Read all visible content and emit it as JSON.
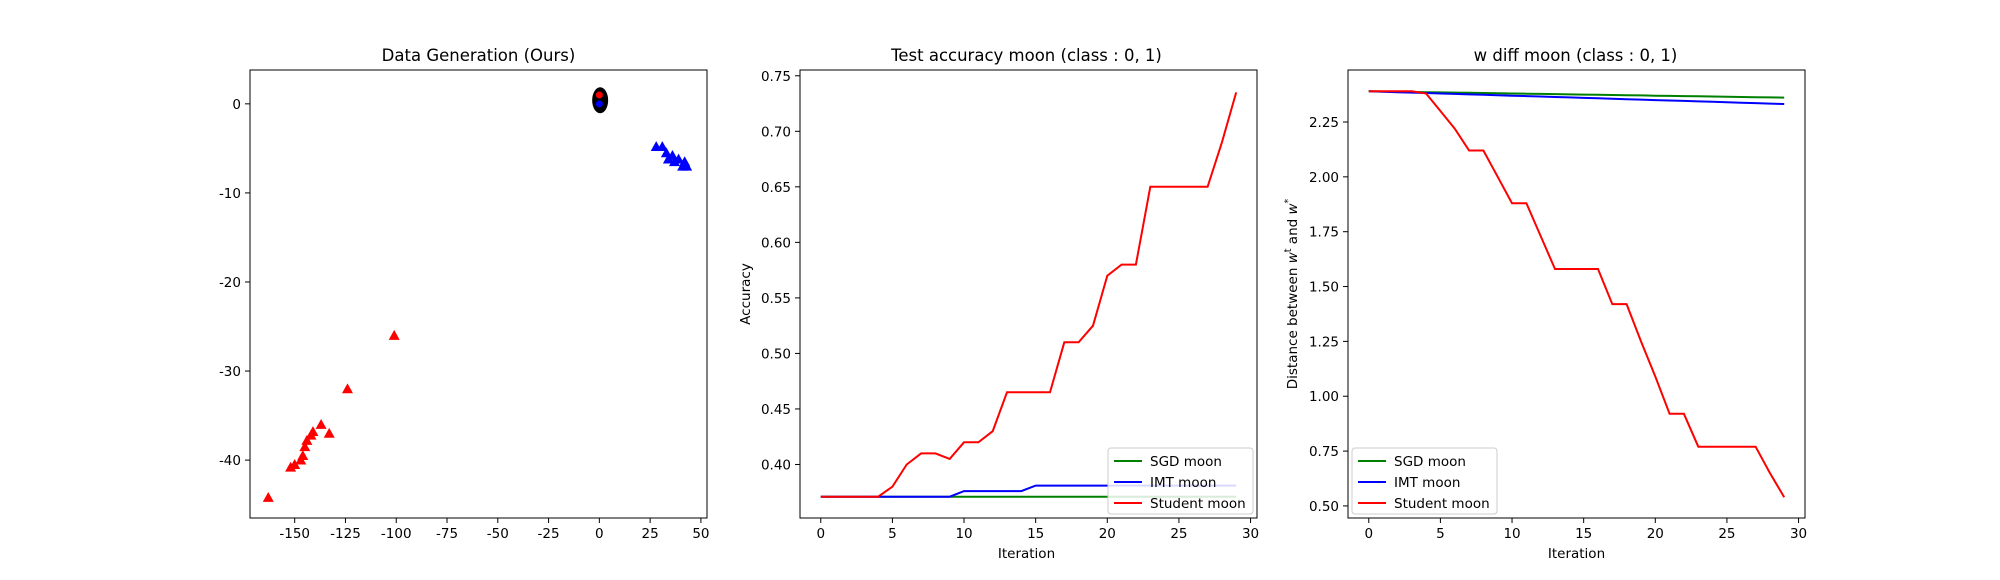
{
  "chart_data": [
    {
      "type": "scatter",
      "title": "Data Generation (Ours)",
      "xlabel": "",
      "ylabel": "",
      "xlim": [
        -172,
        53
      ],
      "ylim": [
        -46.5,
        3.8
      ],
      "xticks": [
        -150,
        -125,
        -100,
        -75,
        -50,
        -25,
        0,
        25,
        50
      ],
      "yticks": [
        0,
        -10,
        -20,
        -30,
        -40
      ],
      "grid": false,
      "colors": {
        "cluster": "#000000",
        "red": "#ff0000",
        "blue": "#0000ff"
      },
      "cluster": {
        "x": 0.4,
        "y": 0.4
      },
      "series": [
        {
          "marker": "triangle",
          "color": "#ff0000",
          "points": [
            [
              -163,
              -44.2
            ],
            [
              -152,
              -40.8
            ],
            [
              -150,
              -40.5
            ],
            [
              -147,
              -40
            ],
            [
              -146,
              -39.5
            ],
            [
              -145,
              -38.5
            ],
            [
              -144,
              -37.8
            ],
            [
              -142,
              -37.2
            ],
            [
              -141,
              -36.8
            ],
            [
              -137,
              -36
            ],
            [
              -133,
              -37
            ],
            [
              -124,
              -32
            ],
            [
              -101,
              -26
            ]
          ]
        },
        {
          "marker": "triangle",
          "color": "#0000ff",
          "points": [
            [
              28,
              -4.8
            ],
            [
              31,
              -4.8
            ],
            [
              33,
              -5.5
            ],
            [
              34,
              -6.2
            ],
            [
              36,
              -5.8
            ],
            [
              37,
              -6.5
            ],
            [
              39,
              -6.2
            ],
            [
              41,
              -7
            ],
            [
              42,
              -6.5
            ],
            [
              43,
              -7
            ]
          ]
        },
        {
          "marker": "dot",
          "color": "#ff0000",
          "points": [
            [
              0,
              1
            ]
          ]
        },
        {
          "marker": "dot",
          "color": "#0000ff",
          "points": [
            [
              0,
              0
            ]
          ]
        }
      ]
    },
    {
      "type": "line",
      "title": "Test accuracy moon (class : 0, 1)",
      "xlabel": "Iteration",
      "ylabel": "Accuracy",
      "xlim": [
        -1.45,
        30.45
      ],
      "ylim": [
        0.3518,
        0.7552
      ],
      "xticks": [
        0,
        5,
        10,
        15,
        20,
        25,
        30
      ],
      "yticks": [
        0.4,
        0.45,
        0.5,
        0.55,
        0.6,
        0.65,
        0.7,
        0.75
      ],
      "ytick_labels": [
        "0.40",
        "0.45",
        "0.50",
        "0.55",
        "0.60",
        "0.65",
        "0.70",
        "0.75"
      ],
      "legend_position": "lower-right",
      "grid": false,
      "x": [
        0,
        1,
        2,
        3,
        4,
        5,
        6,
        7,
        8,
        9,
        10,
        11,
        12,
        13,
        14,
        15,
        16,
        17,
        18,
        19,
        20,
        21,
        22,
        23,
        24,
        25,
        26,
        27,
        28,
        29
      ],
      "series": [
        {
          "name": "SGD moon",
          "color": "#008000",
          "values": [
            0.371,
            0.371,
            0.371,
            0.371,
            0.371,
            0.371,
            0.371,
            0.371,
            0.371,
            0.371,
            0.371,
            0.371,
            0.371,
            0.371,
            0.371,
            0.371,
            0.371,
            0.371,
            0.371,
            0.371,
            0.371,
            0.371,
            0.371,
            0.371,
            0.371,
            0.371,
            0.371,
            0.371,
            0.371,
            0.371
          ]
        },
        {
          "name": "IMT moon",
          "color": "#0000ff",
          "values": [
            0.371,
            0.371,
            0.371,
            0.371,
            0.371,
            0.371,
            0.371,
            0.371,
            0.371,
            0.371,
            0.376,
            0.376,
            0.376,
            0.376,
            0.376,
            0.381,
            0.381,
            0.381,
            0.381,
            0.381,
            0.381,
            0.381,
            0.381,
            0.381,
            0.381,
            0.381,
            0.381,
            0.381,
            0.381,
            0.381
          ]
        },
        {
          "name": "Student moon",
          "color": "#ff0000",
          "values": [
            0.371,
            0.371,
            0.371,
            0.371,
            0.371,
            0.38,
            0.4,
            0.41,
            0.41,
            0.405,
            0.42,
            0.42,
            0.43,
            0.465,
            0.465,
            0.465,
            0.465,
            0.51,
            0.51,
            0.525,
            0.57,
            0.58,
            0.58,
            0.65,
            0.65,
            0.65,
            0.65,
            0.65,
            0.69,
            0.735
          ]
        }
      ]
    },
    {
      "type": "line",
      "title": "w diff moon (class : 0, 1)",
      "xlabel": "Iteration",
      "ylabel": "Distance between w^t and w^*",
      "ylabel_parts": {
        "prefix": "Distance between ",
        "w1": "w",
        "sup1": "t",
        "mid": " and ",
        "w2": "w",
        "sup2": "*"
      },
      "xlim": [
        -1.45,
        30.45
      ],
      "ylim": [
        0.445,
        2.487
      ],
      "xticks": [
        0,
        5,
        10,
        15,
        20,
        25,
        30
      ],
      "yticks": [
        0.5,
        0.75,
        1.0,
        1.25,
        1.5,
        1.75,
        2.0,
        2.25
      ],
      "ytick_labels": [
        "0.50",
        "0.75",
        "1.00",
        "1.25",
        "1.50",
        "1.75",
        "2.00",
        "2.25"
      ],
      "legend_position": "lower-left",
      "grid": false,
      "x": [
        0,
        1,
        2,
        3,
        4,
        5,
        6,
        7,
        8,
        9,
        10,
        11,
        12,
        13,
        14,
        15,
        16,
        17,
        18,
        19,
        20,
        21,
        22,
        23,
        24,
        25,
        26,
        27,
        28,
        29
      ],
      "series": [
        {
          "name": "SGD moon",
          "color": "#008000",
          "values": [
            2.39,
            2.389,
            2.388,
            2.387,
            2.386,
            2.385,
            2.384,
            2.383,
            2.382,
            2.381,
            2.38,
            2.379,
            2.378,
            2.377,
            2.376,
            2.375,
            2.374,
            2.373,
            2.372,
            2.371,
            2.37,
            2.369,
            2.368,
            2.367,
            2.366,
            2.365,
            2.364,
            2.363,
            2.362,
            2.361
          ]
        },
        {
          "name": "IMT moon",
          "color": "#0000ff",
          "values": [
            2.39,
            2.388,
            2.386,
            2.384,
            2.382,
            2.38,
            2.378,
            2.376,
            2.374,
            2.372,
            2.37,
            2.368,
            2.366,
            2.364,
            2.362,
            2.36,
            2.358,
            2.356,
            2.354,
            2.352,
            2.35,
            2.348,
            2.346,
            2.344,
            2.342,
            2.34,
            2.338,
            2.336,
            2.334,
            2.332
          ]
        },
        {
          "name": "Student moon",
          "color": "#ff0000",
          "values": [
            2.39,
            2.39,
            2.39,
            2.39,
            2.38,
            2.3,
            2.22,
            2.12,
            2.12,
            2.0,
            1.88,
            1.88,
            1.73,
            1.58,
            1.58,
            1.58,
            1.58,
            1.42,
            1.42,
            1.25,
            1.09,
            0.92,
            0.92,
            0.77,
            0.77,
            0.77,
            0.77,
            0.77,
            0.65,
            0.54
          ]
        }
      ]
    }
  ]
}
